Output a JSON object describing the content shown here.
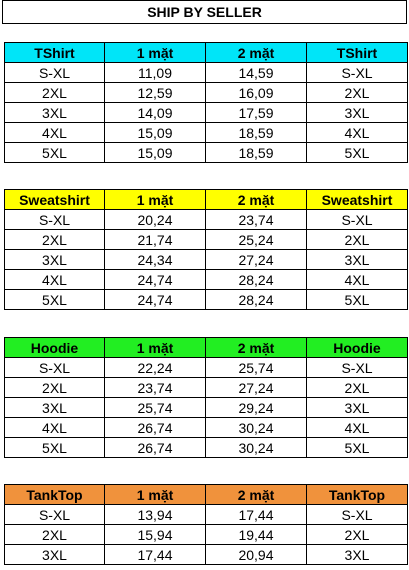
{
  "title": "SHIP BY SELLER",
  "sections": [
    {
      "name": "tshirt",
      "color": "#00E5F8",
      "header": [
        "TShirt",
        "1 mặt",
        "2 mặt",
        "TShirt"
      ],
      "rows": [
        [
          "S-XL",
          "11,09",
          "14,59",
          "S-XL"
        ],
        [
          "2XL",
          "12,59",
          "16,09",
          "2XL"
        ],
        [
          "3XL",
          "14,09",
          "17,59",
          "3XL"
        ],
        [
          "4XL",
          "15,09",
          "18,59",
          "4XL"
        ],
        [
          "5XL",
          "15,09",
          "18,59",
          "5XL"
        ]
      ]
    },
    {
      "name": "sweatshirt",
      "color": "#FFFF00",
      "header": [
        "Sweatshirt",
        "1 mặt",
        "2 mặt",
        "Sweatshirt"
      ],
      "rows": [
        [
          "S-XL",
          "20,24",
          "23,74",
          "S-XL"
        ],
        [
          "2XL",
          "21,74",
          "25,24",
          "2XL"
        ],
        [
          "3XL",
          "24,34",
          "27,24",
          "3XL"
        ],
        [
          "4XL",
          "24,74",
          "28,24",
          "4XL"
        ],
        [
          "5XL",
          "24,74",
          "28,24",
          "5XL"
        ]
      ]
    },
    {
      "name": "hoodie",
      "color": "#22EE22",
      "header": [
        "Hoodie",
        "1 mặt",
        "2 mặt",
        "Hoodie"
      ],
      "rows": [
        [
          "S-XL",
          "22,24",
          "25,74",
          "S-XL"
        ],
        [
          "2XL",
          "23,74",
          "27,24",
          "2XL"
        ],
        [
          "3XL",
          "25,74",
          "29,24",
          "3XL"
        ],
        [
          "4XL",
          "26,74",
          "30,24",
          "4XL"
        ],
        [
          "5XL",
          "26,74",
          "30,24",
          "5XL"
        ]
      ]
    },
    {
      "name": "tanktop",
      "color": "#F0923C",
      "header": [
        "TankTop",
        "1 mặt",
        "2 mặt",
        "TankTop"
      ],
      "rows": [
        [
          "S-XL",
          "13,94",
          "17,44",
          "S-XL"
        ],
        [
          "2XL",
          "15,94",
          "19,44",
          "2XL"
        ],
        [
          "3XL",
          "17,44",
          "20,94",
          "3XL"
        ]
      ]
    }
  ]
}
